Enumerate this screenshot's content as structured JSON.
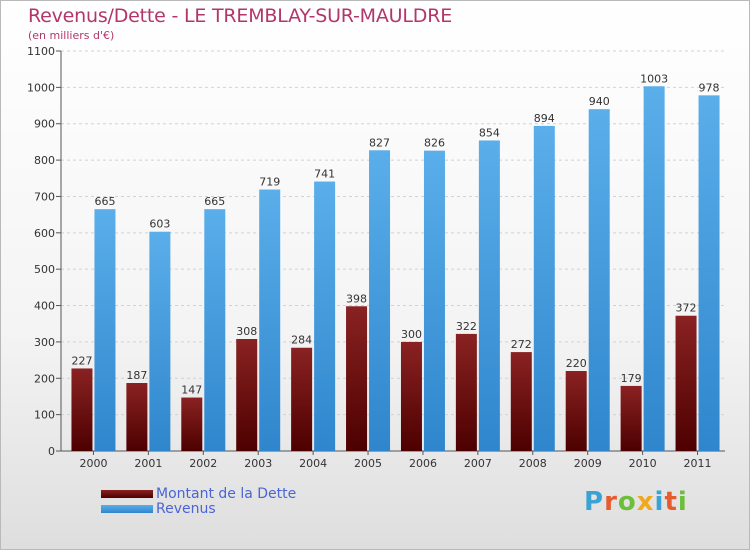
{
  "title": "Revenus/Dette - LE TREMBLAY-SUR-MAULDRE",
  "subtitle": "(en milliers d'€)",
  "legend": [
    {
      "label": "Montant de la Dette",
      "color": "#6e0d0d"
    },
    {
      "label": "Revenus",
      "color": "#4aa3e8"
    }
  ],
  "logo": {
    "text": "Proxiti",
    "letter_colors": [
      "#3aa3d6",
      "#e65c2e",
      "#6cbf3a",
      "#f2a81d",
      "#3aa3d6",
      "#e65c2e",
      "#6cbf3a"
    ]
  },
  "chart_data": {
    "type": "bar",
    "title": "Revenus/Dette - LE TREMBLAY-SUR-MAULDRE",
    "subtitle": "(en milliers d'€)",
    "categories": [
      "2000",
      "2001",
      "2002",
      "2003",
      "2004",
      "2005",
      "2006",
      "2007",
      "2008",
      "2009",
      "2010",
      "2011"
    ],
    "series": [
      {
        "name": "Montant de la Dette",
        "color": "#6e0d0d",
        "values": [
          227,
          187,
          147,
          308,
          284,
          398,
          300,
          322,
          272,
          220,
          179,
          372
        ]
      },
      {
        "name": "Revenus",
        "color": "#4aa3e8",
        "values": [
          665,
          603,
          665,
          719,
          741,
          827,
          826,
          854,
          894,
          940,
          1003,
          978
        ]
      }
    ],
    "ylim": [
      0,
      1100
    ],
    "yticks": [
      0,
      100,
      200,
      300,
      400,
      500,
      600,
      700,
      800,
      900,
      1000,
      1100
    ],
    "grid": true,
    "legend_position": "bottom-left"
  }
}
